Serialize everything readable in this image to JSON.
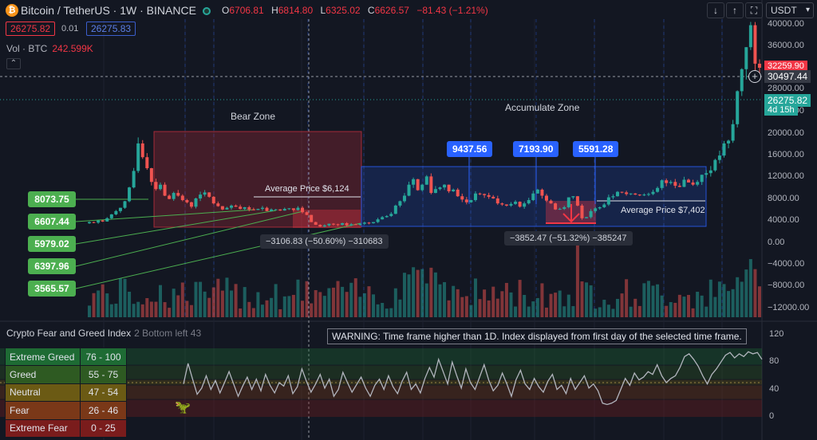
{
  "header": {
    "title": "Bitcoin / TetherUS · 1W · BINANCE",
    "ohlc": [
      {
        "k": "O",
        "v": "6706.81"
      },
      {
        "k": "H",
        "v": "6814.80"
      },
      {
        "k": "L",
        "v": "6325.02"
      },
      {
        "k": "C",
        "v": "6626.57"
      }
    ],
    "change": "−81.43 (−1.21%)",
    "sell_price": "26275.82",
    "spread": "0.01",
    "buy_price": "26275.83",
    "volume_label": "Vol · BTC",
    "volume_value": "242.599K",
    "collapse_glyph": "⌃",
    "currency": "USDT"
  },
  "toolbar_icons": [
    "arrow-down-icon",
    "arrow-up-icon",
    "fullscreen-icon"
  ],
  "price_axis": {
    "labels": [
      "40000.00",
      "36000.00",
      "28000.00",
      "24000.00",
      "20000.00",
      "16000.00",
      "12000.00",
      "8000.00",
      "4000.00",
      "0.00",
      "−4000.00",
      "−8000.00",
      "−12000.00"
    ],
    "badge_red": "32259.90",
    "badge_crosshair": "30497.44",
    "badge_green": "26275.82",
    "badge_countdown": "4d 15h"
  },
  "zones": {
    "bear_label": "Bear Zone",
    "accumulate_label": "Accumulate Zone",
    "avg_bear": "Average Price $6,124",
    "avg_acc": "Average Price $7,402",
    "measure_bear": "−3106.83 (−50.60%) −310683",
    "measure_acc": "−3852.47 (−51.32%) −385247"
  },
  "blue_tags": [
    "9437.56",
    "7193.90",
    "5591.28"
  ],
  "green_tags": [
    "8073.75",
    "6607.44",
    "5979.02",
    "6397.96",
    "3565.57"
  ],
  "indicator": {
    "title": "Crypto Fear and Greed Index",
    "params": "2 Bottom left  43",
    "warning": "WARNING: Time frame higher than 1D. Index displayed from first day of the selected time frame.",
    "axis": [
      "120",
      "80",
      "40",
      "0"
    ],
    "legend": [
      {
        "name": "Extreme Greed",
        "range": "76 - 100",
        "color": "#1e6b34"
      },
      {
        "name": "Greed",
        "range": "55 - 75",
        "color": "#2e5a22"
      },
      {
        "name": "Neutral",
        "range": "47 - 54",
        "color": "#6b5a14"
      },
      {
        "name": "Fear",
        "range": "26 - 46",
        "color": "#7a3818"
      },
      {
        "name": "Extreme Fear",
        "range": "0 - 25",
        "color": "#7a1c1c"
      }
    ],
    "mascot": "🦖"
  },
  "chart_data": {
    "type": "line",
    "candle_close_approx": [
      4200,
      4100,
      4500,
      4300,
      4900,
      5600,
      6200,
      6800,
      8000,
      10500,
      13500,
      18500,
      16000,
      14000,
      11500,
      10200,
      11000,
      9000,
      8400,
      9500,
      9000,
      8200,
      7800,
      7000,
      8500,
      9200,
      9600,
      8800,
      7600,
      7100,
      6500,
      6800,
      7200,
      7000,
      6600,
      6900,
      6500,
      6400,
      6600,
      6800,
      6200,
      6500,
      6500,
      6300,
      6600,
      6700,
      6400,
      6800,
      6000,
      5500,
      4200,
      3700,
      3400,
      3600,
      3900,
      3800,
      3700,
      4000,
      3600,
      3800,
      3700,
      3900,
      4100,
      4000,
      4200,
      4700,
      5100,
      5300,
      5700,
      7200,
      8000,
      9000,
      11000,
      12000,
      10000,
      11000,
      12500,
      9500,
      10200,
      10500,
      11000,
      9800,
      10100,
      8900,
      8300,
      7800,
      8200,
      9400,
      9300,
      9100,
      8800,
      8500,
      7600,
      7400,
      7200,
      7500,
      7900,
      7000,
      7600,
      8200,
      9400,
      10100,
      9000,
      8100,
      7600,
      6500,
      6600,
      6900,
      8700,
      8900,
      7200,
      4900,
      5100,
      6200,
      6700,
      6900,
      7400,
      8700,
      8900,
      9700,
      9600,
      9300,
      9400,
      9200,
      9100,
      9200,
      9300,
      9700,
      10400,
      11800,
      11300,
      11500,
      10800,
      10600,
      11900,
      11400,
      11000,
      11500,
      12800,
      13100,
      13600,
      15500,
      16300,
      18500,
      19000,
      22000,
      28000,
      32000,
      36000,
      40000,
      33000,
      32259.9
    ],
    "fear_greed_approx": [
      48,
      78,
      55,
      33,
      42,
      60,
      40,
      53,
      35,
      50,
      66,
      48,
      30,
      45,
      58,
      40,
      55,
      38,
      62,
      46,
      35,
      50,
      45,
      60,
      34,
      44,
      70,
      52,
      36,
      48,
      62,
      42,
      55,
      30,
      40,
      65,
      50,
      36,
      47,
      58,
      42,
      30,
      46,
      55,
      40,
      60,
      44,
      34,
      52,
      65,
      40,
      48,
      35,
      56,
      72,
      58,
      84,
      66,
      48,
      80,
      60,
      42,
      70,
      50,
      40,
      58,
      76,
      54,
      38,
      46,
      64,
      48,
      30,
      54,
      68,
      48,
      40,
      56,
      44,
      36,
      52,
      62,
      40,
      46,
      34,
      56,
      40,
      50,
      60,
      42,
      48,
      38,
      20,
      18,
      20,
      24,
      40,
      56,
      46,
      64,
      54,
      58,
      66,
      62,
      76,
      60,
      50,
      56,
      60,
      72,
      88,
      92,
      84,
      74,
      60,
      48,
      62,
      70,
      80,
      90,
      94,
      86,
      92,
      88,
      95,
      92,
      94,
      84
    ]
  }
}
